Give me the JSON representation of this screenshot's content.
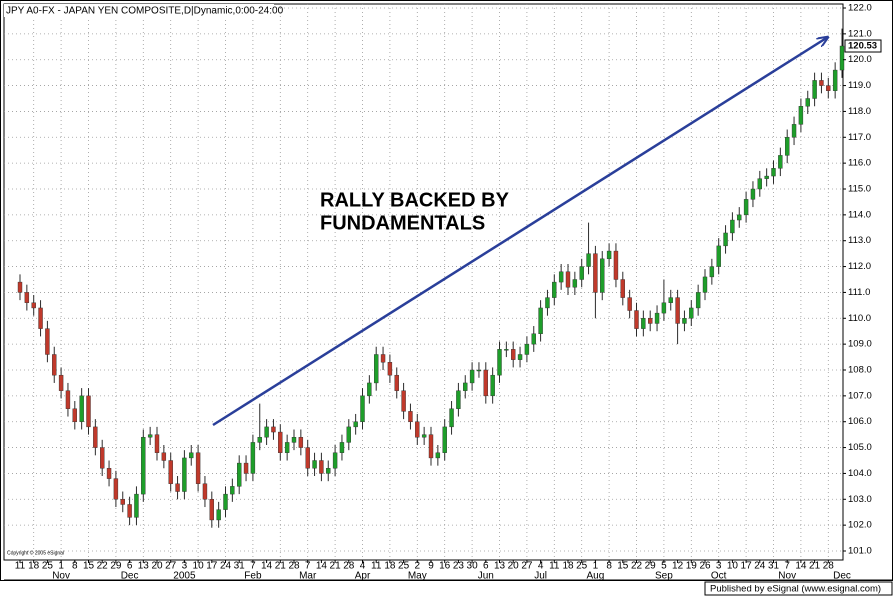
{
  "chart_data": {
    "type": "candlestick",
    "title": "JPY A0-FX - JAPAN YEN COMPOSITE,D|Dynamic,0:00-24:00",
    "annotation": [
      "RALLY BACKED BY",
      "FUNDAMENTALS"
    ],
    "copyright": "Copyright © 2005 eSignal",
    "footer": "Published by eSignal (www.esignal.com)",
    "up_color": "#1e9e2a",
    "down_color": "#c0392b",
    "ylim": [
      101,
      122
    ],
    "yticks": [
      {
        "value": 101,
        "label": "101.0"
      },
      {
        "value": 102,
        "label": "102.0"
      },
      {
        "value": 103,
        "label": "103.0"
      },
      {
        "value": 104,
        "label": "104.0"
      },
      {
        "value": 105,
        "label": "105.0"
      },
      {
        "value": 106,
        "label": "106.0"
      },
      {
        "value": 107,
        "label": "107.0"
      },
      {
        "value": 108,
        "label": "108.0"
      },
      {
        "value": 109,
        "label": "109.0"
      },
      {
        "value": 110,
        "label": "110.0"
      },
      {
        "value": 111,
        "label": "111.0"
      },
      {
        "value": 112,
        "label": "112.0"
      },
      {
        "value": 113,
        "label": "113.0"
      },
      {
        "value": 114,
        "label": "114.0"
      },
      {
        "value": 115,
        "label": "115.0"
      },
      {
        "value": 116,
        "label": "116.0"
      },
      {
        "value": 117,
        "label": "117.0"
      },
      {
        "value": 118,
        "label": "118.0"
      },
      {
        "value": 119,
        "label": "119.0"
      },
      {
        "value": 120,
        "label": "120.0"
      },
      {
        "value": 121,
        "label": "121.0"
      },
      {
        "value": 122,
        "label": "122.0"
      }
    ],
    "grid": true,
    "x_axis": [
      {
        "month": null,
        "days": [
          11,
          18,
          25
        ]
      },
      {
        "month": "Nov",
        "days": [
          1,
          8,
          15,
          22,
          29
        ]
      },
      {
        "month": "Dec",
        "days": [
          6,
          13,
          20,
          27
        ]
      },
      {
        "month": "2005",
        "days": [
          3,
          10,
          17,
          24,
          31
        ]
      },
      {
        "month": "Feb",
        "days": [
          7,
          14,
          21,
          28
        ]
      },
      {
        "month": "Mar",
        "days": [
          7,
          14,
          21,
          28
        ]
      },
      {
        "month": "Apr",
        "days": [
          4,
          11,
          18,
          25
        ]
      },
      {
        "month": "May",
        "days": [
          2,
          9,
          16,
          23,
          30
        ]
      },
      {
        "month": "Jun",
        "days": [
          6,
          13,
          20,
          27
        ]
      },
      {
        "month": "Jul",
        "days": [
          4,
          11,
          18,
          25
        ]
      },
      {
        "month": "Aug",
        "days": [
          1,
          8,
          15,
          22,
          29
        ]
      },
      {
        "month": "Sep",
        "days": [
          5,
          12,
          19,
          26
        ]
      },
      {
        "month": "Oct",
        "days": [
          3,
          10,
          17,
          24,
          31
        ]
      },
      {
        "month": "Nov",
        "days": [
          7,
          14,
          21,
          28
        ]
      },
      {
        "month": "Dec",
        "days": []
      }
    ],
    "candles": {
      "open": [
        111.4,
        111.0,
        110.6,
        110.4,
        109.6,
        108.6,
        107.8,
        107.2,
        106.5,
        106.0,
        107.0,
        105.8,
        105.0,
        104.2,
        103.8,
        103.0,
        102.8,
        102.3,
        103.2,
        105.4,
        105.5,
        104.8,
        104.5,
        103.6,
        103.3,
        104.6,
        104.8,
        103.6,
        103.0,
        102.2,
        102.6,
        103.2,
        103.5,
        104.4,
        104.0,
        105.2,
        105.4,
        105.8,
        105.6,
        104.8,
        105.2,
        105.4,
        105.0,
        104.2,
        104.5,
        104.0,
        104.2,
        104.8,
        105.2,
        105.8,
        106.0,
        107.0,
        107.5,
        108.6,
        108.3,
        107.8,
        107.2,
        106.4,
        106.0,
        105.4,
        105.5,
        104.6,
        104.8,
        105.8,
        106.5,
        107.2,
        107.5,
        108.0,
        108.0,
        107.0,
        107.8,
        108.8,
        108.8,
        108.4,
        108.6,
        109.0,
        109.4,
        110.4,
        110.8,
        111.4,
        111.8,
        111.2,
        111.5,
        112.0,
        112.5,
        111.0,
        112.3,
        112.6,
        111.5,
        110.8,
        110.3,
        109.6,
        110.0,
        109.8,
        110.2,
        110.6,
        110.8,
        109.8,
        110.0,
        110.4,
        111.0,
        111.6,
        112.0,
        112.8,
        113.3,
        113.8,
        114.0,
        114.6,
        115.0,
        115.4,
        115.5,
        115.8,
        116.3,
        117.0,
        117.5,
        118.2,
        118.5,
        119.2,
        119.0,
        118.8,
        119.6
      ],
      "high": [
        111.7,
        111.3,
        110.9,
        110.7,
        109.9,
        108.9,
        108.1,
        107.5,
        106.8,
        107.3,
        107.3,
        106.1,
        105.3,
        104.5,
        104.1,
        103.3,
        103.1,
        103.5,
        105.7,
        105.8,
        105.8,
        105.1,
        104.8,
        103.9,
        104.9,
        105.1,
        105.1,
        103.9,
        103.3,
        102.9,
        103.5,
        103.8,
        104.7,
        104.7,
        105.5,
        106.7,
        106.1,
        106.1,
        105.9,
        105.5,
        105.7,
        105.7,
        105.3,
        104.8,
        104.8,
        104.5,
        105.1,
        105.5,
        106.1,
        106.3,
        107.3,
        107.8,
        108.9,
        108.9,
        108.6,
        108.1,
        107.5,
        106.7,
        106.3,
        105.8,
        105.8,
        105.1,
        106.1,
        106.8,
        107.5,
        107.8,
        108.3,
        108.3,
        108.3,
        108.1,
        109.1,
        109.1,
        109.1,
        108.9,
        109.3,
        109.7,
        110.7,
        111.1,
        111.7,
        112.1,
        112.1,
        111.8,
        112.3,
        113.7,
        112.8,
        112.6,
        112.9,
        112.9,
        111.8,
        111.1,
        110.6,
        110.3,
        110.3,
        110.5,
        111.5,
        111.1,
        111.1,
        110.3,
        110.7,
        111.3,
        111.9,
        112.3,
        113.1,
        113.6,
        114.1,
        114.3,
        114.9,
        115.3,
        115.7,
        115.8,
        116.1,
        116.6,
        117.3,
        117.8,
        118.5,
        118.8,
        119.5,
        119.5,
        119.3,
        119.9,
        121.2
      ],
      "low": [
        110.7,
        110.3,
        110.1,
        109.3,
        108.3,
        107.5,
        106.9,
        106.2,
        105.7,
        105.7,
        105.5,
        104.7,
        103.9,
        103.5,
        102.7,
        102.5,
        102.0,
        102.0,
        102.9,
        105.1,
        104.5,
        104.2,
        103.3,
        103.0,
        103.0,
        104.3,
        103.3,
        102.7,
        101.9,
        101.9,
        102.3,
        102.9,
        103.2,
        103.7,
        103.7,
        104.9,
        105.1,
        105.3,
        104.5,
        104.5,
        104.9,
        104.7,
        103.9,
        103.9,
        103.7,
        103.7,
        103.9,
        104.5,
        104.9,
        105.5,
        105.7,
        106.7,
        107.2,
        108.0,
        107.5,
        106.9,
        106.1,
        105.7,
        105.1,
        105.1,
        104.3,
        104.3,
        104.5,
        105.5,
        106.2,
        106.9,
        107.2,
        107.7,
        106.7,
        106.7,
        107.5,
        108.5,
        108.1,
        108.1,
        108.3,
        108.7,
        109.1,
        110.1,
        110.5,
        111.1,
        110.9,
        110.9,
        111.2,
        111.7,
        110.0,
        110.7,
        112.0,
        111.2,
        110.5,
        110.0,
        109.3,
        109.3,
        109.5,
        109.5,
        109.9,
        110.3,
        109.0,
        109.5,
        109.7,
        110.1,
        110.7,
        111.3,
        111.7,
        112.5,
        113.0,
        113.5,
        113.7,
        114.3,
        114.7,
        115.1,
        115.2,
        115.5,
        116.0,
        116.7,
        117.2,
        117.9,
        118.2,
        118.7,
        118.5,
        118.5,
        119.3
      ],
      "close": [
        111.0,
        110.6,
        110.4,
        109.6,
        108.6,
        107.8,
        107.2,
        106.5,
        106.0,
        107.0,
        105.8,
        105.0,
        104.2,
        103.8,
        103.0,
        102.8,
        102.3,
        103.2,
        105.4,
        105.5,
        104.8,
        104.5,
        103.6,
        103.3,
        104.6,
        104.8,
        103.6,
        103.0,
        102.2,
        102.6,
        103.2,
        103.5,
        104.4,
        104.0,
        105.2,
        105.4,
        105.8,
        105.6,
        104.8,
        105.2,
        105.4,
        105.0,
        104.2,
        104.5,
        104.0,
        104.2,
        104.8,
        105.2,
        105.8,
        106.0,
        107.0,
        107.5,
        108.6,
        108.3,
        107.8,
        107.2,
        106.4,
        106.0,
        105.4,
        105.5,
        104.6,
        104.8,
        105.8,
        106.5,
        107.2,
        107.5,
        108.0,
        108.0,
        107.0,
        107.8,
        108.8,
        108.8,
        108.4,
        108.6,
        109.0,
        109.4,
        110.4,
        110.8,
        111.4,
        111.8,
        111.2,
        111.5,
        112.0,
        112.5,
        111.0,
        112.3,
        112.6,
        111.5,
        110.8,
        110.3,
        109.6,
        110.0,
        109.8,
        110.2,
        110.6,
        110.8,
        109.8,
        110.0,
        110.4,
        111.0,
        111.6,
        112.0,
        112.8,
        113.3,
        113.8,
        114.0,
        114.6,
        115.0,
        115.4,
        115.5,
        115.8,
        116.3,
        117.0,
        117.5,
        118.2,
        118.5,
        119.2,
        119.0,
        118.8,
        119.6,
        120.53
      ]
    }
  }
}
